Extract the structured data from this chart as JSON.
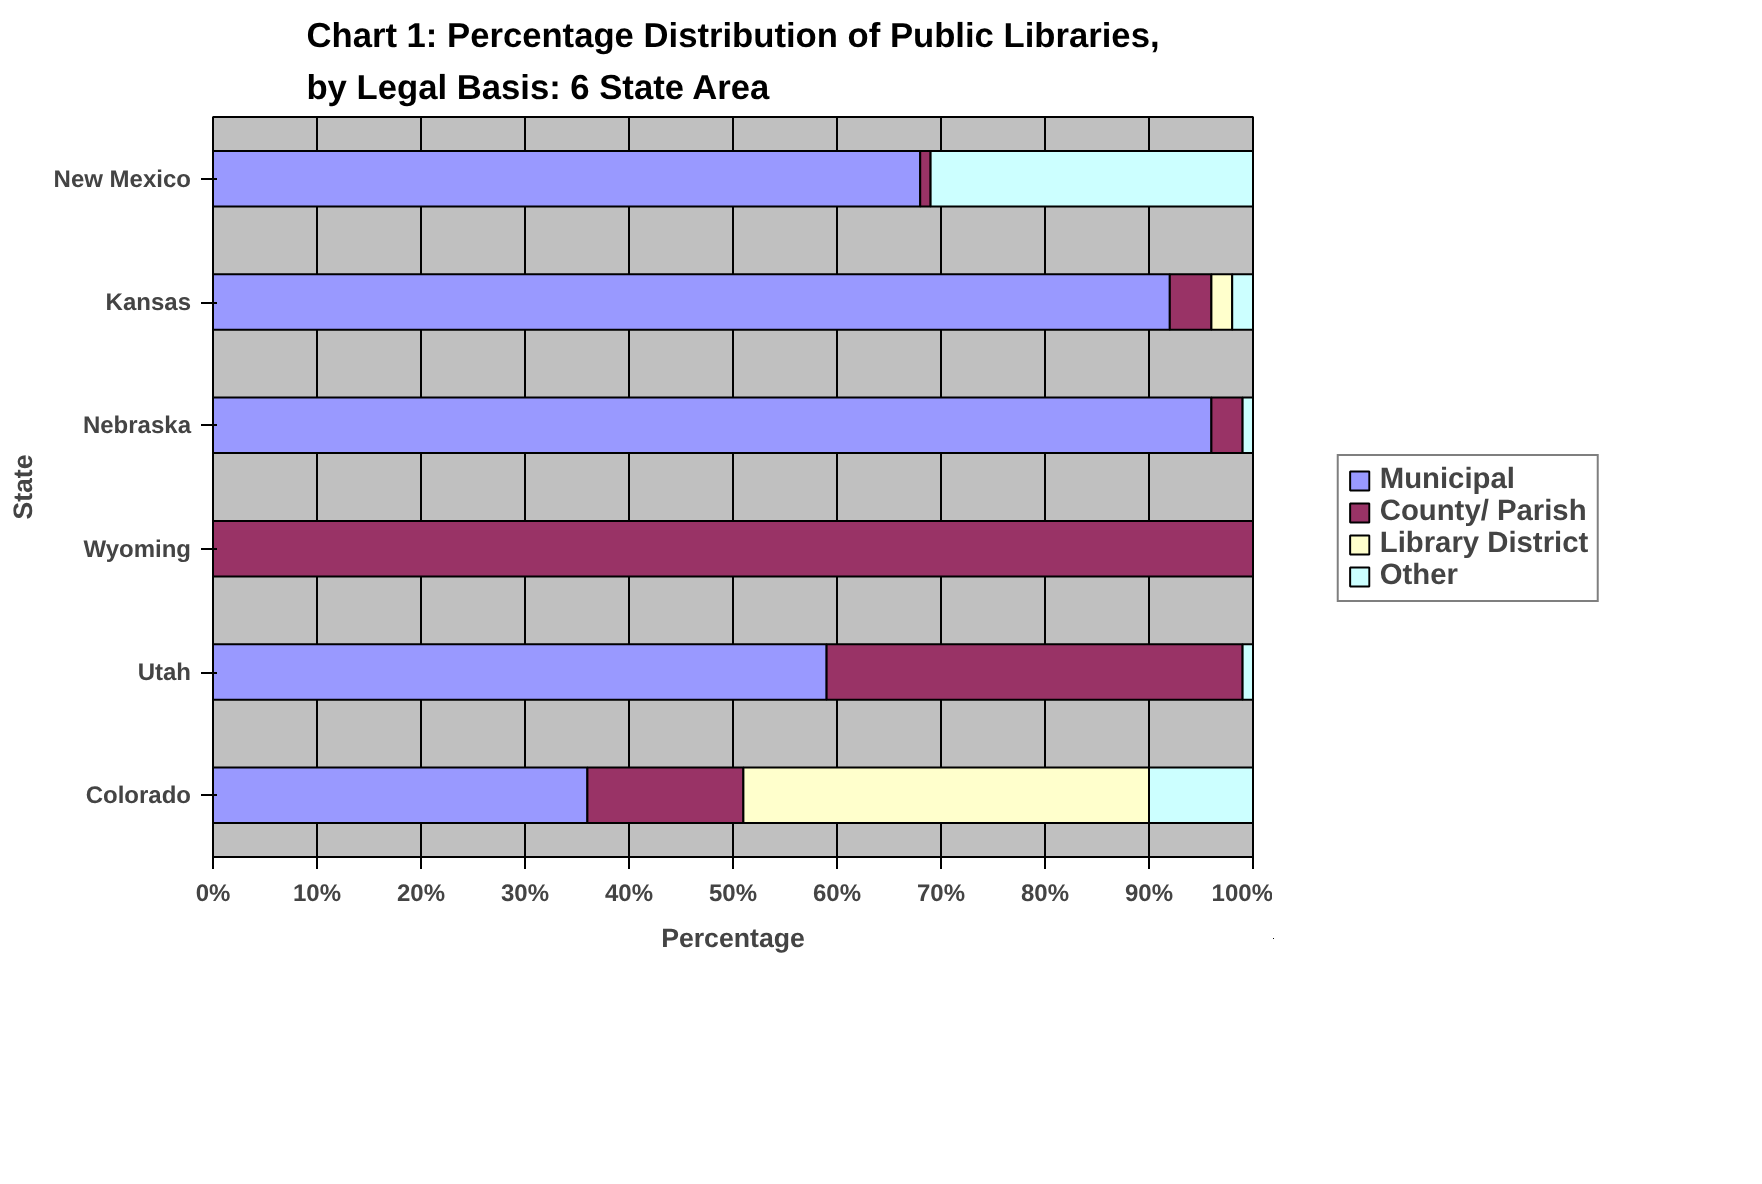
{
  "chart_data": {
    "type": "bar",
    "orientation": "horizontal",
    "stacked": true,
    "title": "Chart 1: Percentage Distribution of Public Libraries,\nby Legal Basis: 6 State Area",
    "xlabel": "Percentage",
    "ylabel": "State",
    "categories": [
      "New Mexico",
      "Kansas",
      "Nebraska",
      "Wyoming",
      "Utah",
      "Colorado"
    ],
    "series": [
      {
        "name": "Municipal",
        "color": "#9999ff",
        "values": [
          68,
          92,
          96,
          0,
          59,
          36
        ]
      },
      {
        "name": "County/ Parish",
        "color": "#993366",
        "values": [
          1,
          4,
          3,
          100,
          40,
          15
        ]
      },
      {
        "name": "Library District",
        "color": "#ffffcc",
        "values": [
          0,
          2,
          0,
          0,
          0,
          39
        ]
      },
      {
        "name": "Other",
        "color": "#ccffff",
        "values": [
          31,
          2,
          1,
          0,
          1,
          10
        ]
      }
    ],
    "xlim": [
      0,
      100
    ],
    "xticks": [
      {
        "value": 0,
        "label": "0%"
      },
      {
        "value": 10,
        "label": "10%"
      },
      {
        "value": 20,
        "label": "20%"
      },
      {
        "value": 30,
        "label": "30%"
      },
      {
        "value": 40,
        "label": "40%"
      },
      {
        "value": 50,
        "label": "50%"
      },
      {
        "value": 60,
        "label": "60%"
      },
      {
        "value": 70,
        "label": "70%"
      },
      {
        "value": 80,
        "label": "80%"
      },
      {
        "value": 90,
        "label": "90%"
      },
      {
        "value": 100,
        "label": "100%"
      }
    ],
    "grid": "x",
    "legend": "right"
  }
}
